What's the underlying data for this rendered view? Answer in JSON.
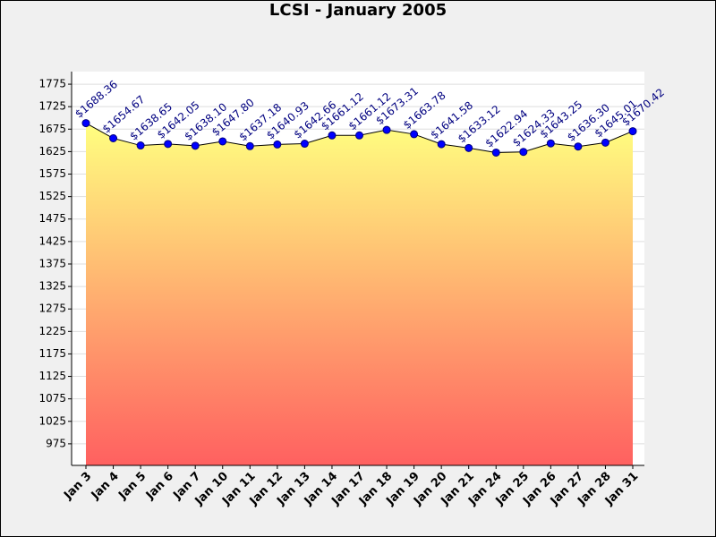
{
  "chart_data": {
    "type": "area",
    "title": "LCSI - January 2005",
    "categories": [
      "Jan 3",
      "Jan 4",
      "Jan 5",
      "Jan 6",
      "Jan 7",
      "Jan 10",
      "Jan 11",
      "Jan 12",
      "Jan 13",
      "Jan 14",
      "Jan 17",
      "Jan 18",
      "Jan 19",
      "Jan 20",
      "Jan 21",
      "Jan 24",
      "Jan 25",
      "Jan 26",
      "Jan 27",
      "Jan 28",
      "Jan 31"
    ],
    "values": [
      1688.36,
      1654.67,
      1638.65,
      1642.05,
      1638.1,
      1647.8,
      1637.18,
      1640.93,
      1642.66,
      1661.12,
      1661.12,
      1673.31,
      1663.78,
      1641.58,
      1633.12,
      1622.94,
      1624.33,
      1643.25,
      1636.3,
      1645.01,
      1670.42
    ],
    "value_labels": [
      "$1688.36",
      "$1654.67",
      "$1638.65",
      "$1642.05",
      "$1638.10",
      "$1647.80",
      "$1637.18",
      "$1640.93",
      "$1642.66",
      "$1661.12",
      "$1661.12",
      "$1673.31",
      "$1663.78",
      "$1641.58",
      "$1633.12",
      "$1622.94",
      "$1624.33",
      "$1643.25",
      "$1636.30",
      "$1645.01",
      "$1670.42"
    ],
    "color": "#0000ff",
    "ylim": [
      927,
      1803
    ],
    "yticks": [
      975,
      1025,
      1075,
      1125,
      1175,
      1225,
      1275,
      1325,
      1375,
      1425,
      1475,
      1525,
      1575,
      1625,
      1675,
      1725,
      1775
    ],
    "grid": true
  }
}
